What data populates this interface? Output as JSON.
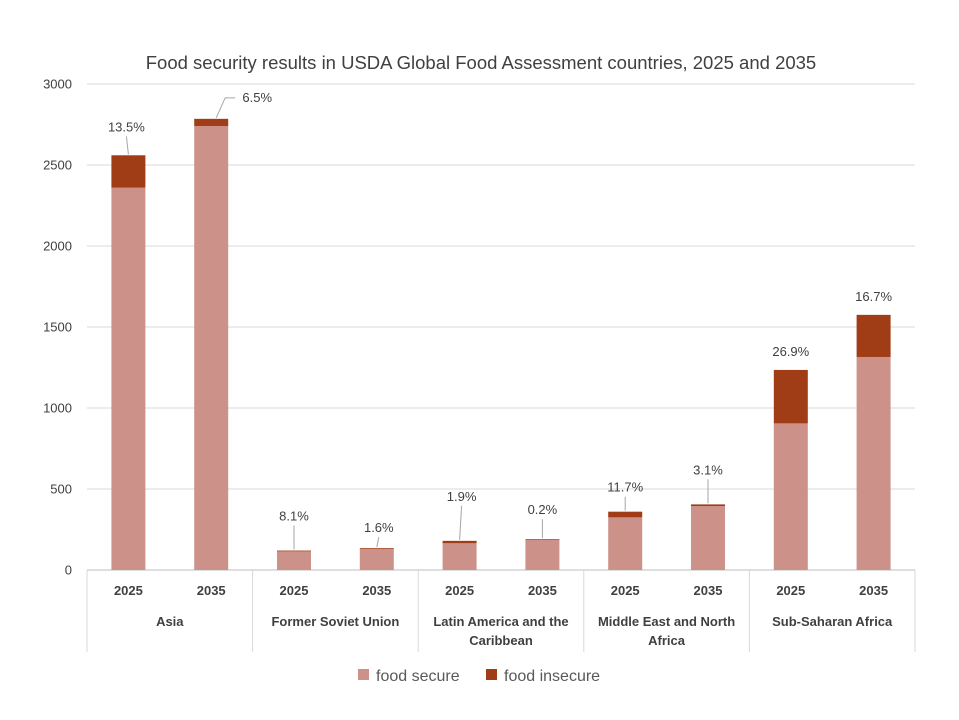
{
  "chart_data": {
    "type": "bar",
    "stacked": true,
    "title": "Food security results in USDA Global Food Assessment  countries, 2025 and 2035",
    "xlabel": "",
    "ylabel": "",
    "ylim": [
      0,
      3000
    ],
    "yticks": [
      0,
      500,
      1000,
      1500,
      2000,
      2500,
      3000
    ],
    "grid": true,
    "legend_position": "bottom",
    "groups": [
      {
        "name": "Asia",
        "name_lines": [
          "Asia"
        ]
      },
      {
        "name": "Former Soviet Union",
        "name_lines": [
          "Former Soviet Union"
        ]
      },
      {
        "name": "Latin America and the Caribbean",
        "name_lines": [
          "Latin America and the",
          "Caribbean"
        ]
      },
      {
        "name": "Middle East and North Africa",
        "name_lines": [
          "Middle East and North",
          "Africa"
        ]
      },
      {
        "name": "Sub-Saharan Africa",
        "name_lines": [
          "Sub-Saharan Africa"
        ]
      }
    ],
    "categories": [
      "2025",
      "2035",
      "2025",
      "2035",
      "2025",
      "2035",
      "2025",
      "2035",
      "2025",
      "2035"
    ],
    "category_group": [
      0,
      0,
      1,
      1,
      2,
      2,
      3,
      3,
      4,
      4
    ],
    "series": [
      {
        "name": "food secure",
        "color": "#cc928a",
        "values": [
          2360,
          2740,
          115,
          130,
          165,
          185,
          325,
          395,
          905,
          1315
        ]
      },
      {
        "name": "food insecure",
        "color": "#a03d17",
        "values": [
          200,
          45,
          5,
          5,
          15,
          5,
          35,
          10,
          330,
          260
        ]
      }
    ],
    "data_labels": [
      "13.5%",
      "6.5%",
      "8.1%",
      "1.6%",
      "1.9%",
      "0.2%",
      "11.7%",
      "3.1%",
      "26.9%",
      "16.7%"
    ]
  }
}
